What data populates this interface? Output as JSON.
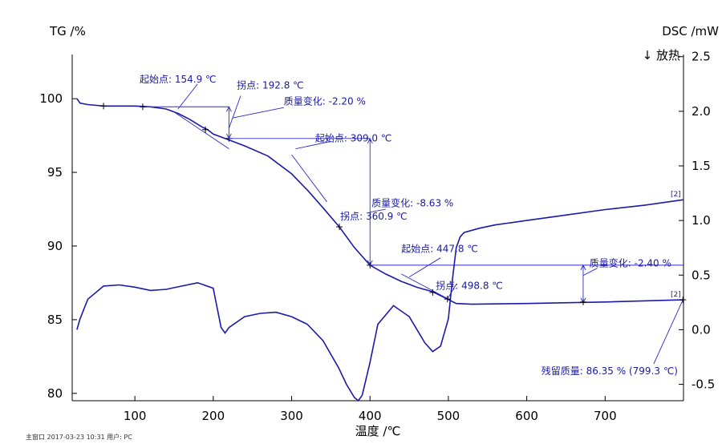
{
  "chart_data": {
    "type": "line",
    "left_axis_title": "TG /%",
    "right_axis_title": "DSC /mW",
    "right_axis_subtitle": "↓ 放热",
    "xlabel": "温度 /℃",
    "xlim": [
      20,
      800
    ],
    "ylim_left": [
      79.5,
      103
    ],
    "ylim_right": [
      -0.65,
      2.52
    ],
    "x_ticks": [
      "100",
      "200",
      "300",
      "400",
      "500",
      "600",
      "700"
    ],
    "y_left_ticks": [
      "80",
      "85",
      "90",
      "95",
      "100"
    ],
    "y_right_ticks": [
      "-0.5",
      "0.0",
      "0.5",
      "1.0",
      "1.5",
      "2.0",
      "2.5"
    ],
    "x_tick_values": [
      100,
      200,
      300,
      400,
      500,
      600,
      700
    ],
    "y_left_tick_values": [
      80,
      85,
      90,
      95,
      100
    ],
    "y_right_tick_values": [
      -0.5,
      0.0,
      0.5,
      1.0,
      1.5,
      2.0,
      2.5
    ],
    "series": [
      {
        "axis": "left",
        "color": "#1a1aa8",
        "x": [
          26,
          30,
          40,
          60,
          80,
          100,
          120,
          140,
          155,
          170,
          185,
          192.8,
          200,
          215,
          240,
          270,
          300,
          320,
          340,
          360.9,
          380,
          400,
          420,
          440,
          460,
          480,
          498.8,
          510,
          530,
          600,
          700,
          800
        ],
        "y": [
          100.0,
          99.7,
          99.6,
          99.5,
          99.5,
          99.5,
          99.45,
          99.3,
          99.0,
          98.6,
          98.1,
          97.9,
          97.6,
          97.3,
          96.8,
          96.1,
          94.9,
          93.8,
          92.6,
          91.3,
          89.9,
          88.7,
          88.1,
          87.6,
          87.2,
          86.9,
          86.4,
          86.1,
          86.05,
          86.1,
          86.2,
          86.35
        ],
        "end_tag": "[2]"
      },
      {
        "axis": "right",
        "color": "#1a1aa8",
        "x": [
          26,
          30,
          40,
          60,
          80,
          100,
          120,
          140,
          160,
          180,
          200,
          205,
          210,
          215,
          220,
          240,
          260,
          280,
          300,
          320,
          340,
          360,
          370,
          380,
          385,
          390,
          400,
          410,
          430,
          450,
          470,
          480,
          490,
          500,
          505,
          510,
          515,
          520,
          540,
          560,
          600,
          650,
          700,
          750,
          800
        ],
        "y": [
          0.0,
          0.1,
          0.28,
          0.4,
          0.41,
          0.39,
          0.36,
          0.37,
          0.4,
          0.43,
          0.38,
          0.2,
          0.02,
          -0.03,
          0.02,
          0.12,
          0.15,
          0.16,
          0.12,
          0.05,
          -0.1,
          -0.35,
          -0.5,
          -0.62,
          -0.65,
          -0.6,
          -0.3,
          0.05,
          0.22,
          0.12,
          -0.12,
          -0.2,
          -0.15,
          0.1,
          0.45,
          0.75,
          0.85,
          0.89,
          0.93,
          0.96,
          1.0,
          1.05,
          1.1,
          1.14,
          1.19
        ],
        "end_tag": "[2]"
      }
    ],
    "annotations": {
      "onset1": "起始点: 154.9 ℃",
      "inflection1": "拐点: 192.8 ℃",
      "mass_change1": "质量变化: -2.20 %",
      "onset2": "起始点: 309.0 ℃",
      "mass_change2": "质量变化: -8.63 %",
      "inflection2": "拐点: 360.9 ℃",
      "onset3": "起始点: 447.8 ℃",
      "mass_change3": "质量变化: -2.40 %",
      "inflection3": "拐点: 498.8 ℃",
      "residual": "残留质量: 86.35 % (799.3 ℃)"
    },
    "footer": "主窗口   2017-03-23 10:31   用户: PC"
  }
}
